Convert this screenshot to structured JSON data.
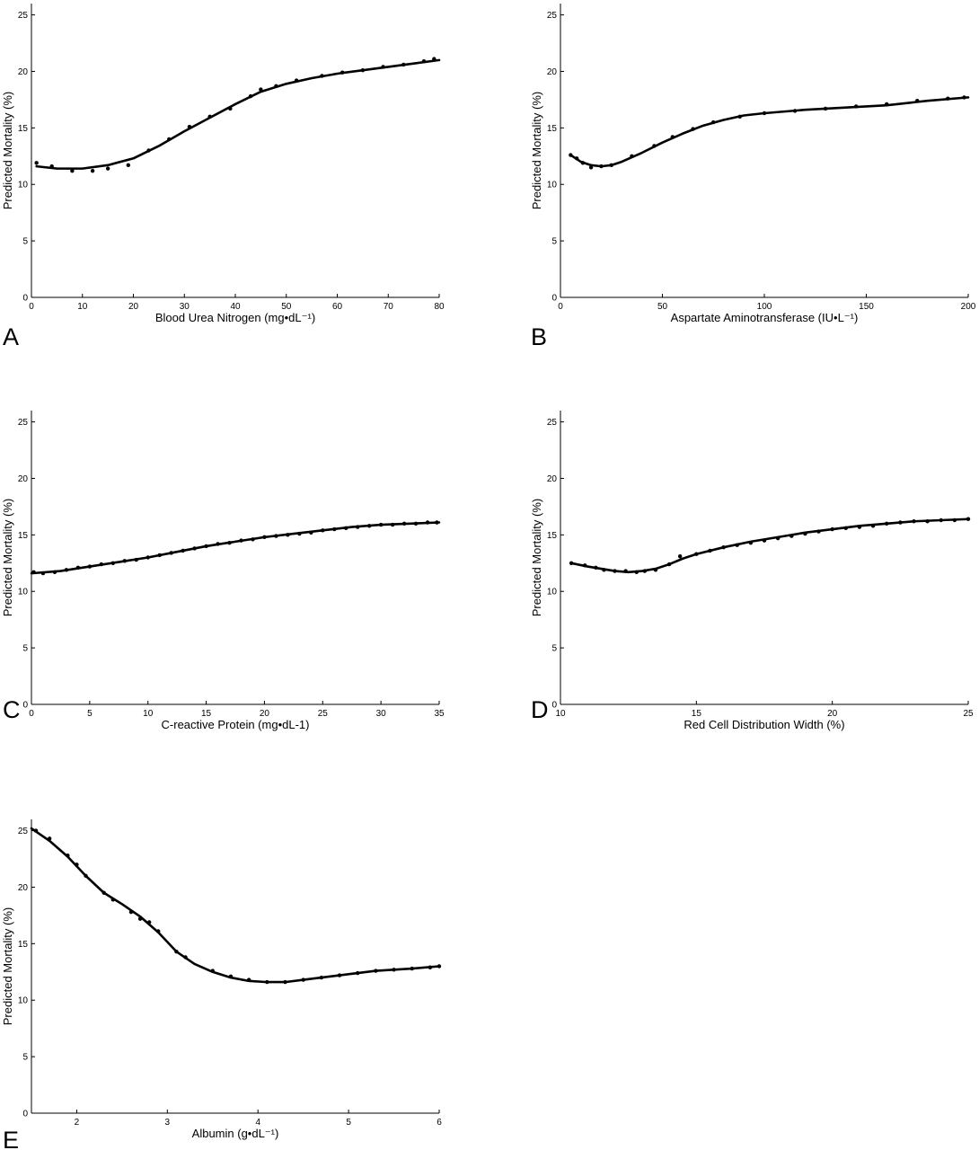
{
  "figure": {
    "line_color": "#000000",
    "point_color": "#000000",
    "background": "#ffffff"
  },
  "chart_data": [
    {
      "panel": "A",
      "type": "line",
      "xlabel": "Blood Urea Nitrogen (mg•dL⁻¹)",
      "ylabel": "Predicted Mortality (%)",
      "xlim": [
        0,
        80
      ],
      "ylim": [
        0,
        26
      ],
      "xticks": [
        0,
        10,
        20,
        30,
        40,
        50,
        60,
        70,
        80
      ],
      "yticks": [
        0,
        5,
        10,
        15,
        20,
        25
      ],
      "curve": {
        "x": [
          1,
          5,
          10,
          15,
          20,
          25,
          30,
          35,
          40,
          45,
          50,
          55,
          60,
          65,
          70,
          75,
          80
        ],
        "y": [
          11.6,
          11.4,
          11.4,
          11.7,
          12.3,
          13.4,
          14.7,
          15.9,
          17.1,
          18.2,
          18.9,
          19.4,
          19.8,
          20.1,
          20.4,
          20.7,
          21.0
        ]
      },
      "points": {
        "x": [
          1,
          4,
          8,
          12,
          15,
          19,
          23,
          27,
          31,
          35,
          39,
          43,
          45,
          48,
          52,
          57,
          61,
          65,
          69,
          73,
          77,
          79
        ],
        "y": [
          11.9,
          11.6,
          11.2,
          11.2,
          11.4,
          11.7,
          13.0,
          14.0,
          15.1,
          16.0,
          16.7,
          17.8,
          18.4,
          18.7,
          19.2,
          19.6,
          19.9,
          20.1,
          20.4,
          20.6,
          20.9,
          21.1
        ]
      }
    },
    {
      "panel": "B",
      "type": "line",
      "xlabel": "Aspartate Aminotransferase (IU•L⁻¹)",
      "ylabel": "Predicted Mortality (%)",
      "xlim": [
        0,
        200
      ],
      "ylim": [
        0,
        26
      ],
      "xticks": [
        0,
        50,
        100,
        150,
        200
      ],
      "yticks": [
        0,
        5,
        10,
        15,
        20,
        25
      ],
      "curve": {
        "x": [
          5,
          10,
          15,
          20,
          25,
          30,
          40,
          50,
          60,
          70,
          80,
          90,
          100,
          120,
          140,
          160,
          180,
          200
        ],
        "y": [
          12.6,
          12.0,
          11.7,
          11.6,
          11.7,
          12.0,
          12.8,
          13.7,
          14.5,
          15.2,
          15.7,
          16.1,
          16.3,
          16.6,
          16.8,
          17.0,
          17.4,
          17.7
        ]
      },
      "points": {
        "x": [
          5,
          8,
          11,
          15,
          20,
          25,
          35,
          46,
          55,
          65,
          75,
          88,
          100,
          115,
          130,
          145,
          160,
          175,
          190,
          198
        ],
        "y": [
          12.6,
          12.3,
          11.9,
          11.5,
          11.6,
          11.7,
          12.5,
          13.4,
          14.2,
          14.9,
          15.5,
          16.0,
          16.3,
          16.5,
          16.7,
          16.9,
          17.1,
          17.4,
          17.6,
          17.7
        ]
      }
    },
    {
      "panel": "C",
      "type": "line",
      "xlabel": "C-reactive Protein (mg•dL-1)",
      "ylabel": "Predicted Mortality (%)",
      "xlim": [
        0,
        35
      ],
      "ylim": [
        0,
        26
      ],
      "xticks": [
        0,
        5,
        10,
        15,
        20,
        25,
        30,
        35
      ],
      "yticks": [
        0,
        5,
        10,
        15,
        20,
        25
      ],
      "curve": {
        "x": [
          0,
          2.5,
          5,
          7.5,
          10,
          12.5,
          15,
          17.5,
          20,
          22.5,
          25,
          27.5,
          30,
          32.5,
          35
        ],
        "y": [
          11.6,
          11.8,
          12.2,
          12.6,
          13.0,
          13.5,
          14.0,
          14.4,
          14.8,
          15.1,
          15.4,
          15.7,
          15.9,
          16.0,
          16.1
        ]
      },
      "points": {
        "x": [
          0.2,
          1,
          2,
          3,
          4,
          5,
          6,
          7,
          8,
          9,
          10,
          11,
          12,
          13,
          14,
          15,
          16,
          17,
          18,
          19,
          20,
          21,
          22,
          23,
          24,
          25,
          26,
          27,
          28,
          29,
          30,
          31,
          32,
          33,
          34,
          34.8
        ],
        "y": [
          11.7,
          11.6,
          11.7,
          11.9,
          12.1,
          12.2,
          12.4,
          12.5,
          12.7,
          12.8,
          13.0,
          13.2,
          13.4,
          13.6,
          13.8,
          14.0,
          14.2,
          14.3,
          14.5,
          14.6,
          14.8,
          14.9,
          15.0,
          15.1,
          15.2,
          15.4,
          15.5,
          15.6,
          15.7,
          15.8,
          15.9,
          15.9,
          16.0,
          16.0,
          16.1,
          16.1
        ]
      }
    },
    {
      "panel": "D",
      "type": "line",
      "xlabel": "Red Cell Distribution Width (%)",
      "ylabel": "Predicted Mortality (%)",
      "xlim": [
        10,
        25
      ],
      "ylim": [
        0,
        26
      ],
      "xticks": [
        10,
        15,
        20,
        25
      ],
      "yticks": [
        0,
        5,
        10,
        15,
        20,
        25
      ],
      "curve": {
        "x": [
          10.4,
          11,
          11.5,
          12,
          12.5,
          13,
          13.5,
          14,
          14.5,
          15,
          16,
          17,
          18,
          19,
          20,
          21,
          22,
          23,
          24,
          25
        ],
        "y": [
          12.5,
          12.2,
          12.0,
          11.8,
          11.7,
          11.8,
          12.0,
          12.4,
          12.9,
          13.3,
          13.9,
          14.4,
          14.8,
          15.2,
          15.5,
          15.8,
          16.0,
          16.2,
          16.3,
          16.4
        ]
      },
      "points": {
        "x": [
          10.4,
          10.9,
          11.3,
          11.6,
          12.0,
          12.4,
          12.8,
          13.1,
          13.5,
          14.0,
          14.4,
          15.0,
          15.5,
          16.0,
          16.5,
          17.0,
          17.5,
          18.0,
          18.5,
          19.0,
          19.5,
          20.0,
          20.5,
          21.0,
          21.5,
          22.0,
          22.5,
          23.0,
          23.5,
          24.0,
          24.5,
          25.0
        ],
        "y": [
          12.5,
          12.3,
          12.1,
          11.9,
          11.8,
          11.8,
          11.7,
          11.8,
          11.9,
          12.4,
          13.1,
          13.3,
          13.6,
          13.9,
          14.1,
          14.3,
          14.5,
          14.7,
          14.9,
          15.1,
          15.3,
          15.5,
          15.6,
          15.7,
          15.8,
          16.0,
          16.1,
          16.2,
          16.2,
          16.3,
          16.3,
          16.4
        ]
      }
    },
    {
      "panel": "E",
      "type": "line",
      "xlabel": "Albumin (g•dL⁻¹)",
      "ylabel": "Predicted Mortality (%)",
      "xlim": [
        1.5,
        6
      ],
      "ylim": [
        0,
        26
      ],
      "xticks": [
        2,
        3,
        4,
        5,
        6
      ],
      "yticks": [
        0,
        5,
        10,
        15,
        20,
        25
      ],
      "curve": {
        "x": [
          1.5,
          1.7,
          1.9,
          2.1,
          2.3,
          2.5,
          2.7,
          2.9,
          3.1,
          3.3,
          3.5,
          3.7,
          3.9,
          4.1,
          4.3,
          4.5,
          4.7,
          4.9,
          5.1,
          5.3,
          5.5,
          5.7,
          6.0
        ],
        "y": [
          25.2,
          24.1,
          22.7,
          21.0,
          19.5,
          18.5,
          17.4,
          16.0,
          14.3,
          13.2,
          12.5,
          12.0,
          11.7,
          11.6,
          11.6,
          11.8,
          12.0,
          12.2,
          12.4,
          12.6,
          12.7,
          12.8,
          13.0
        ]
      },
      "points": {
        "x": [
          1.55,
          1.7,
          1.9,
          2.0,
          2.1,
          2.3,
          2.4,
          2.6,
          2.7,
          2.8,
          2.9,
          3.1,
          3.2,
          3.5,
          3.7,
          3.9,
          4.1,
          4.3,
          4.5,
          4.7,
          4.9,
          5.1,
          5.3,
          5.5,
          5.7,
          5.9,
          6.0
        ],
        "y": [
          25.0,
          24.3,
          22.8,
          22.0,
          21.0,
          19.5,
          18.9,
          17.8,
          17.2,
          16.9,
          16.1,
          14.3,
          13.8,
          12.6,
          12.1,
          11.8,
          11.6,
          11.6,
          11.8,
          12.0,
          12.2,
          12.4,
          12.6,
          12.7,
          12.8,
          12.9,
          13.0
        ]
      }
    }
  ]
}
